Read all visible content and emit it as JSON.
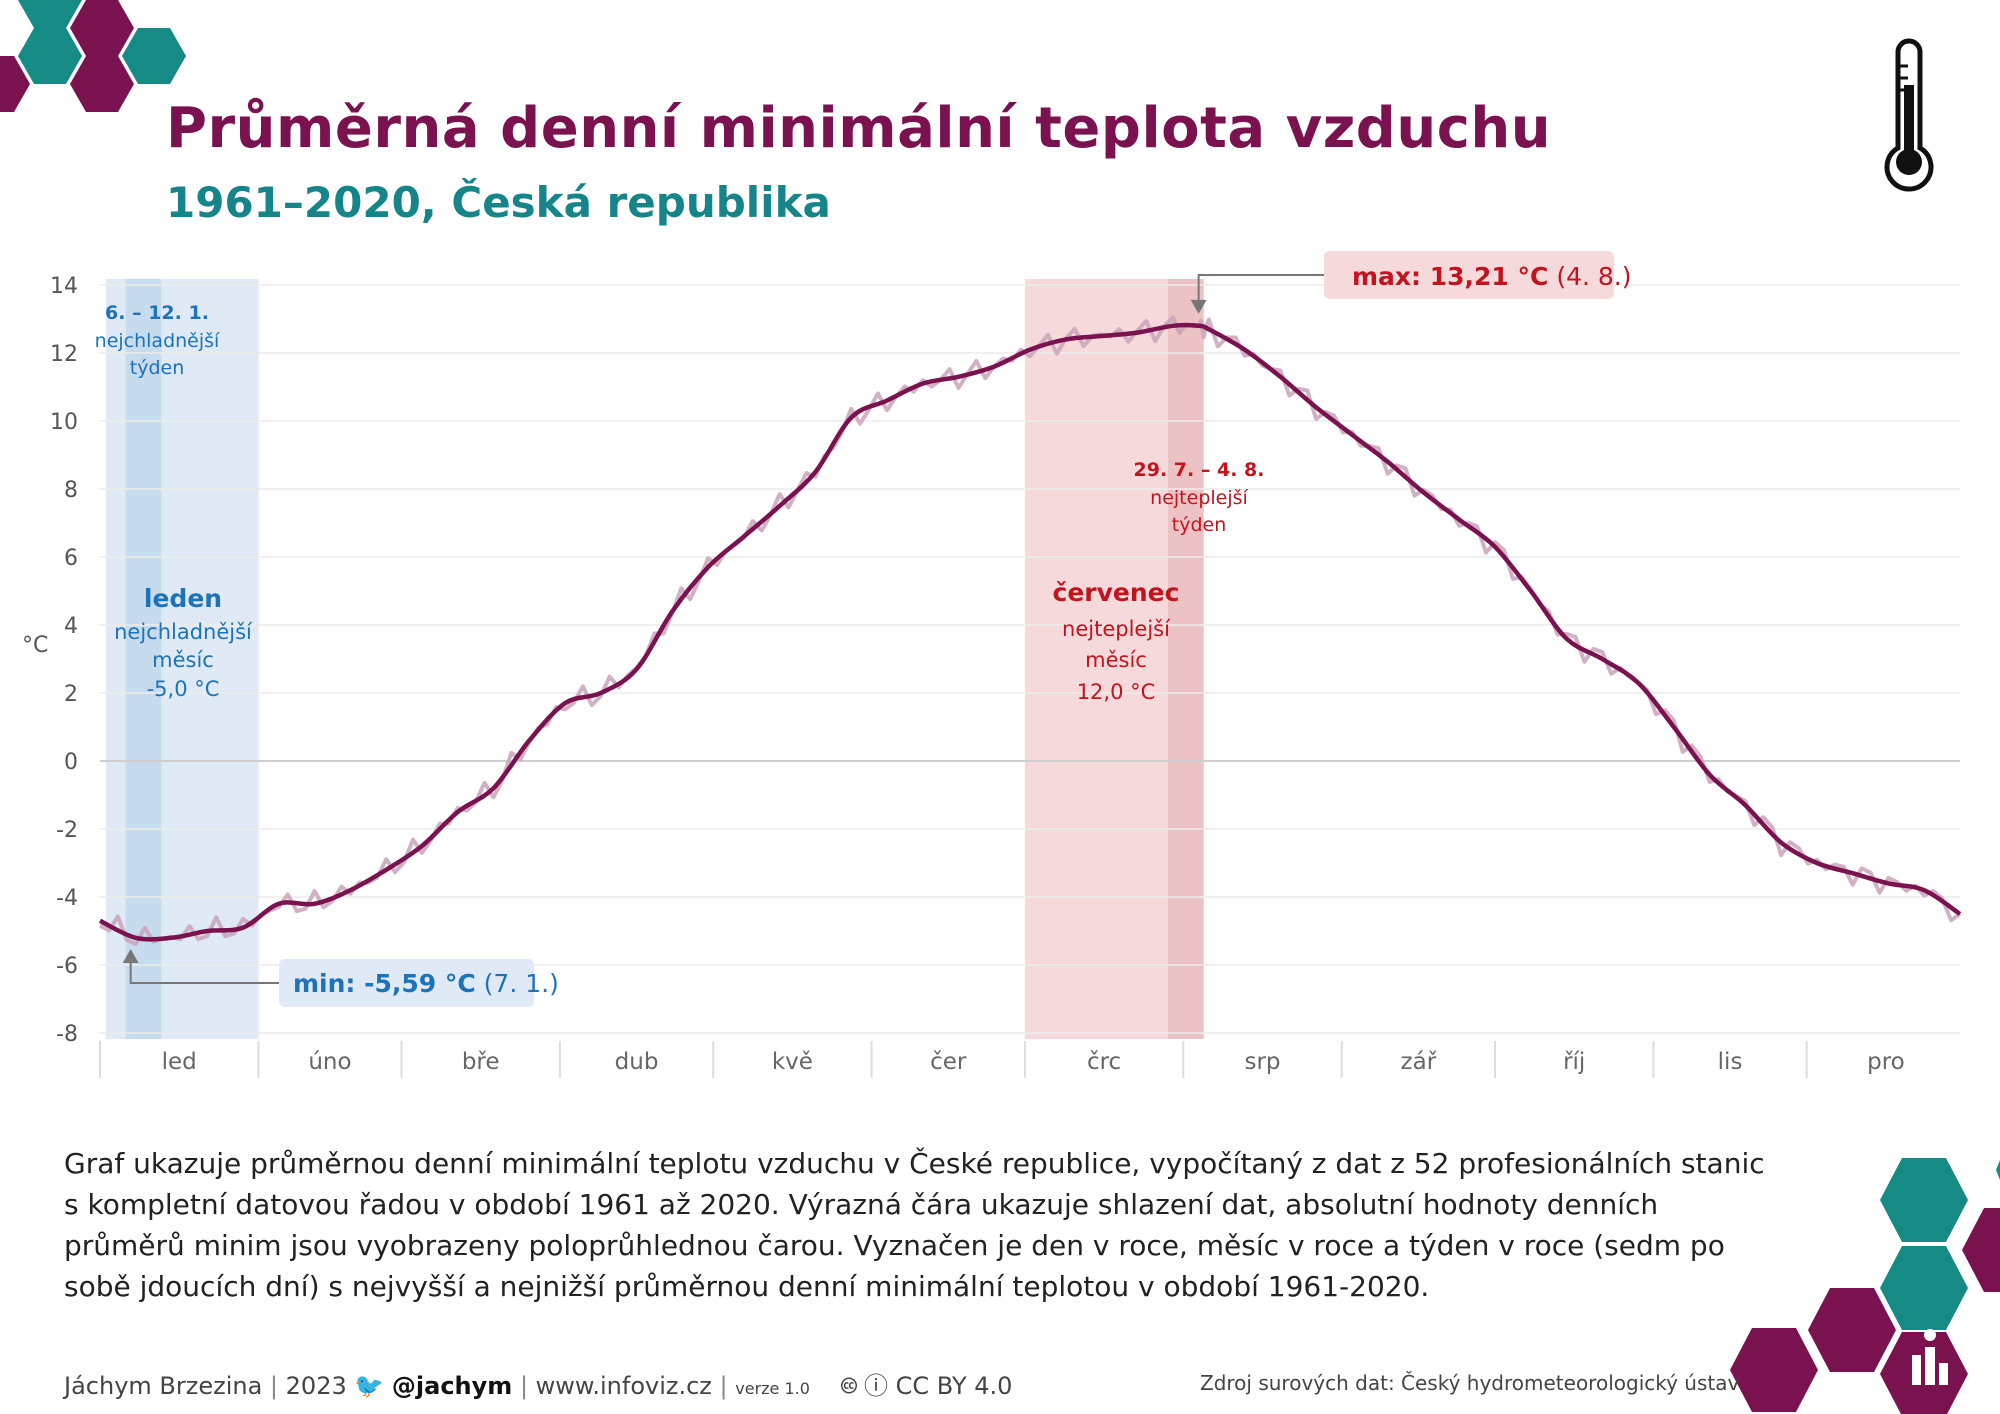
{
  "header": {
    "title": "Průměrná denní minimální teplota vzduchu",
    "subtitle": "1961–2020, Česká republika"
  },
  "colors": {
    "title": "#7a1250",
    "subtitle": "#16858a",
    "line": "#7a1250",
    "line_raw": "#c9a3b9",
    "cold": "#1d72b8",
    "cold_band": "#dfeaf6",
    "cold_band_dark": "#c6dcee",
    "warm": "#c0141e",
    "warm_band": "#f6dadb",
    "warm_band_dark": "#edc2c4"
  },
  "icons": [
    "thermometer-icon",
    "twitter-icon",
    "cc-icon",
    "person-icon",
    "infoviz-icon"
  ],
  "chart_data": {
    "type": "line",
    "ylabel": "°C",
    "ylim": [
      -8,
      14
    ],
    "yticks": [
      14,
      12,
      10,
      8,
      6,
      4,
      2,
      0,
      -2,
      -4,
      -6,
      -8
    ],
    "months": [
      "led",
      "úno",
      "bře",
      "dub",
      "kvě",
      "čer",
      "črc",
      "srp",
      "zář",
      "říj",
      "lis",
      "pro"
    ],
    "series": [
      {
        "style": "smoothed",
        "day_of_year": [
          1,
          8,
          15,
          22,
          29,
          36,
          43,
          50,
          57,
          64,
          71,
          78,
          85,
          92,
          99,
          106,
          113,
          120,
          127,
          134,
          141,
          148,
          155,
          162,
          169,
          176,
          183,
          190,
          197,
          204,
          211,
          216,
          218,
          225,
          232,
          239,
          246,
          253,
          260,
          267,
          274,
          281,
          288,
          295,
          302,
          309,
          316,
          323,
          330,
          337,
          344,
          351,
          358,
          365
        ],
        "values": [
          -4.7,
          -5.2,
          -5.2,
          -5.0,
          -4.9,
          -4.2,
          -4.2,
          -3.8,
          -3.2,
          -2.5,
          -1.5,
          -0.8,
          0.6,
          1.7,
          2.0,
          2.7,
          4.4,
          5.7,
          6.6,
          7.5,
          8.5,
          10.1,
          10.6,
          11.1,
          11.3,
          11.6,
          12.1,
          12.4,
          12.5,
          12.6,
          12.8,
          12.8,
          12.7,
          12.1,
          11.3,
          10.4,
          9.6,
          8.8,
          7.9,
          7.1,
          6.3,
          5.0,
          3.6,
          3.0,
          2.3,
          1.0,
          -0.4,
          -1.3,
          -2.4,
          -3.0,
          -3.3,
          -3.6,
          -3.8,
          -4.5
        ]
      }
    ],
    "annotations": {
      "max": {
        "label": "max: 13,21 °C",
        "date": "(4. 8.)",
        "value": 13.21,
        "day_of_year": 216
      },
      "min": {
        "label": "min: -5,59 °C",
        "date": "(7. 1.)",
        "value": -5.59,
        "day_of_year": 7
      },
      "coldest_week": {
        "title": "6. – 12. 1.",
        "line1": "nejchladnější",
        "line2": "týden",
        "start_day": 6,
        "end_day": 12
      },
      "warmest_week": {
        "title": "29. 7. – 4. 8.",
        "line1": "nejteplejší",
        "line2": "týden",
        "start_day": 210,
        "end_day": 216
      },
      "coldest_month": {
        "title": "leden",
        "line1": "nejchladnější",
        "line2": "měsíc",
        "value": "-5,0 °C"
      },
      "warmest_month": {
        "title": "červenec",
        "line1": "nejteplejší",
        "line2": "měsíc",
        "value": "12,0 °C"
      }
    }
  },
  "description": "Graf ukazuje průměrnou denní minimální teplotu vzduchu v České republice, vypočítaný z dat z 52 profesionálních stanic s kompletní datovou řadou v období 1961 až 2020. Výrazná čára ukazuje shlazení dat, absolutní hodnoty denních průměrů minim jsou vyobrazeny poloprůhlednou čarou. Vyznačen je den v roce, měsíc v roce a týden v roce (sedm po sobě jdoucích dní) s nejvyšší a nejnižší průměrnou denní minimální teplotou v období 1961-2020.",
  "footer": {
    "author": "Jáchym Brzezina",
    "year": "2023",
    "twitter": "@jachym",
    "website": "www.infoviz.cz",
    "version": "verze 1.0",
    "license": "CC BY 4.0",
    "source": "Zdroj surových dat: Český hydrometeorologický ústav"
  }
}
